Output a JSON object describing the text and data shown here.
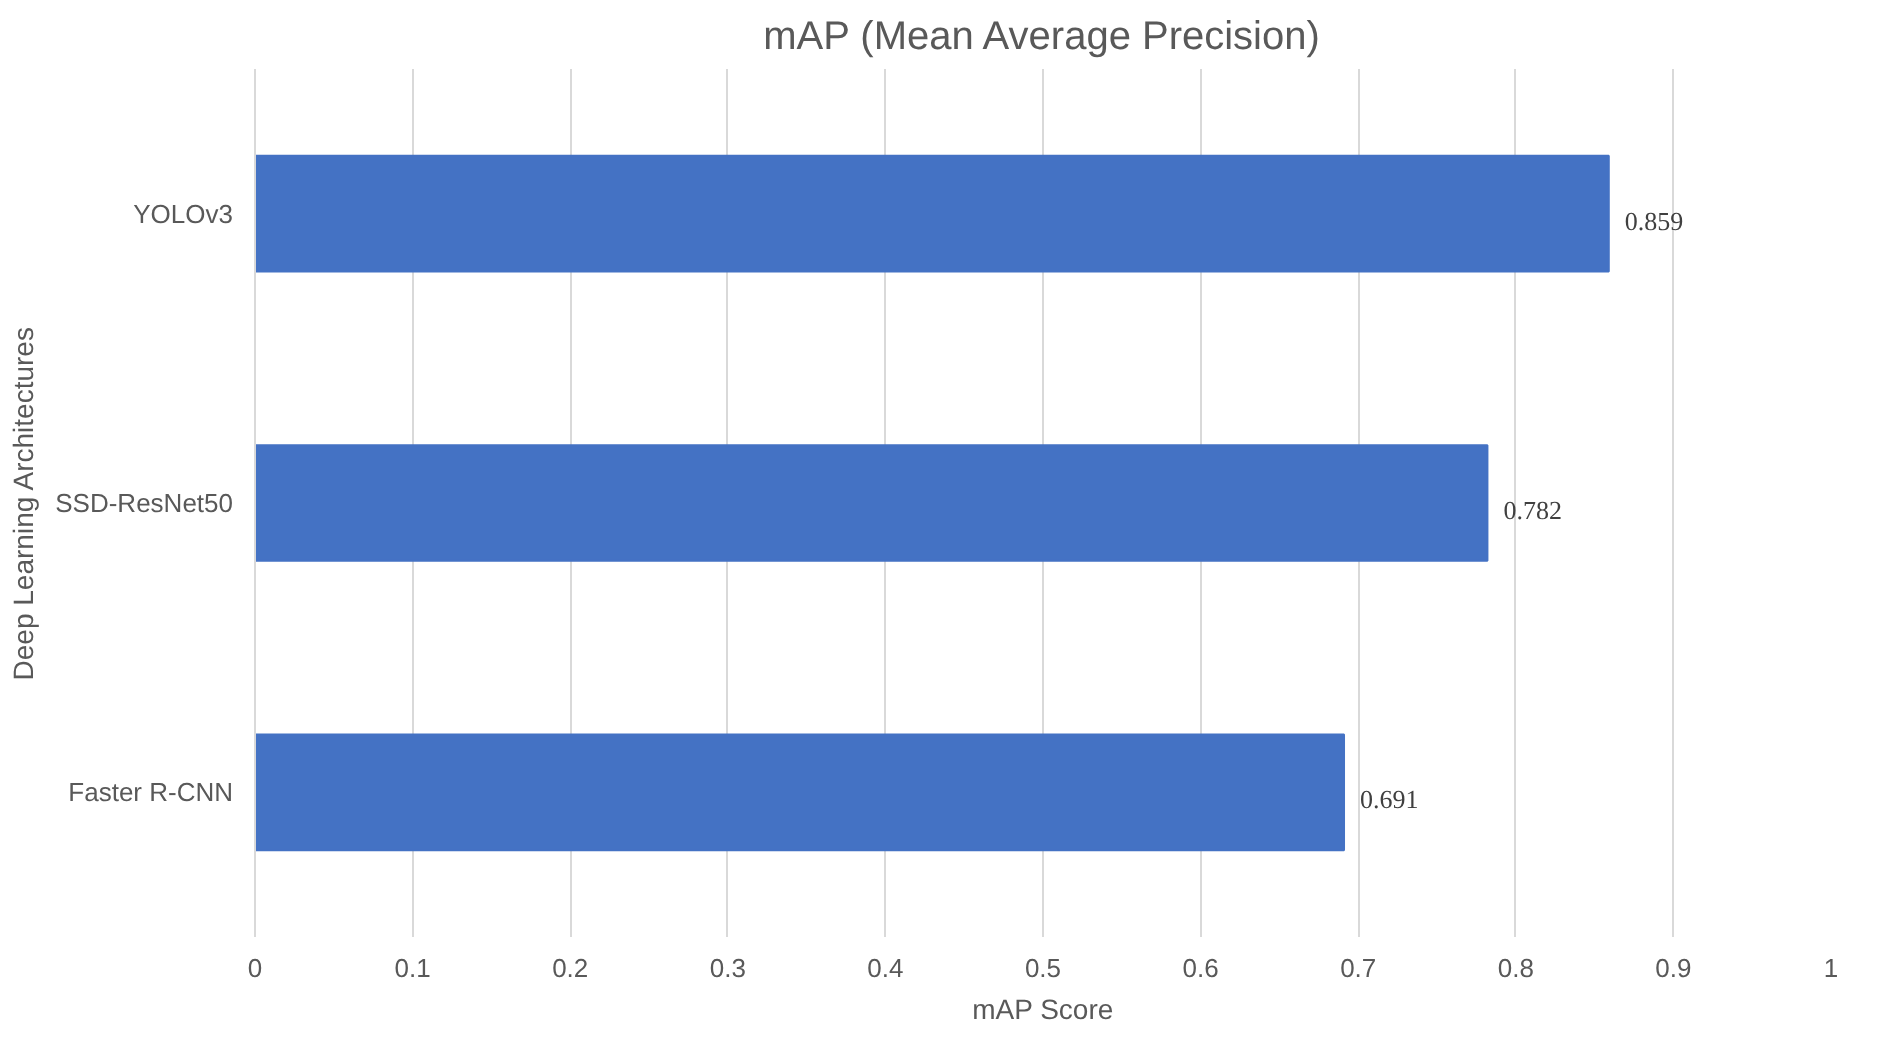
{
  "chart_data": {
    "type": "bar",
    "orientation": "horizontal",
    "title": "mAP (Mean Average Precision)",
    "xlabel": "mAP Score",
    "ylabel": "Deep Learning Architectures",
    "categories": [
      "YOLOv3",
      "SSD-ResNet50",
      "Faster R-CNN"
    ],
    "values": [
      0.859,
      0.782,
      0.691
    ],
    "color": "#4472c4",
    "xlim": [
      0,
      1
    ],
    "xticks": [
      0,
      0.1,
      0.2,
      0.3,
      0.4,
      0.5,
      0.6,
      0.7,
      0.8,
      0.9,
      1
    ],
    "grid": "x",
    "data_labels": true
  }
}
